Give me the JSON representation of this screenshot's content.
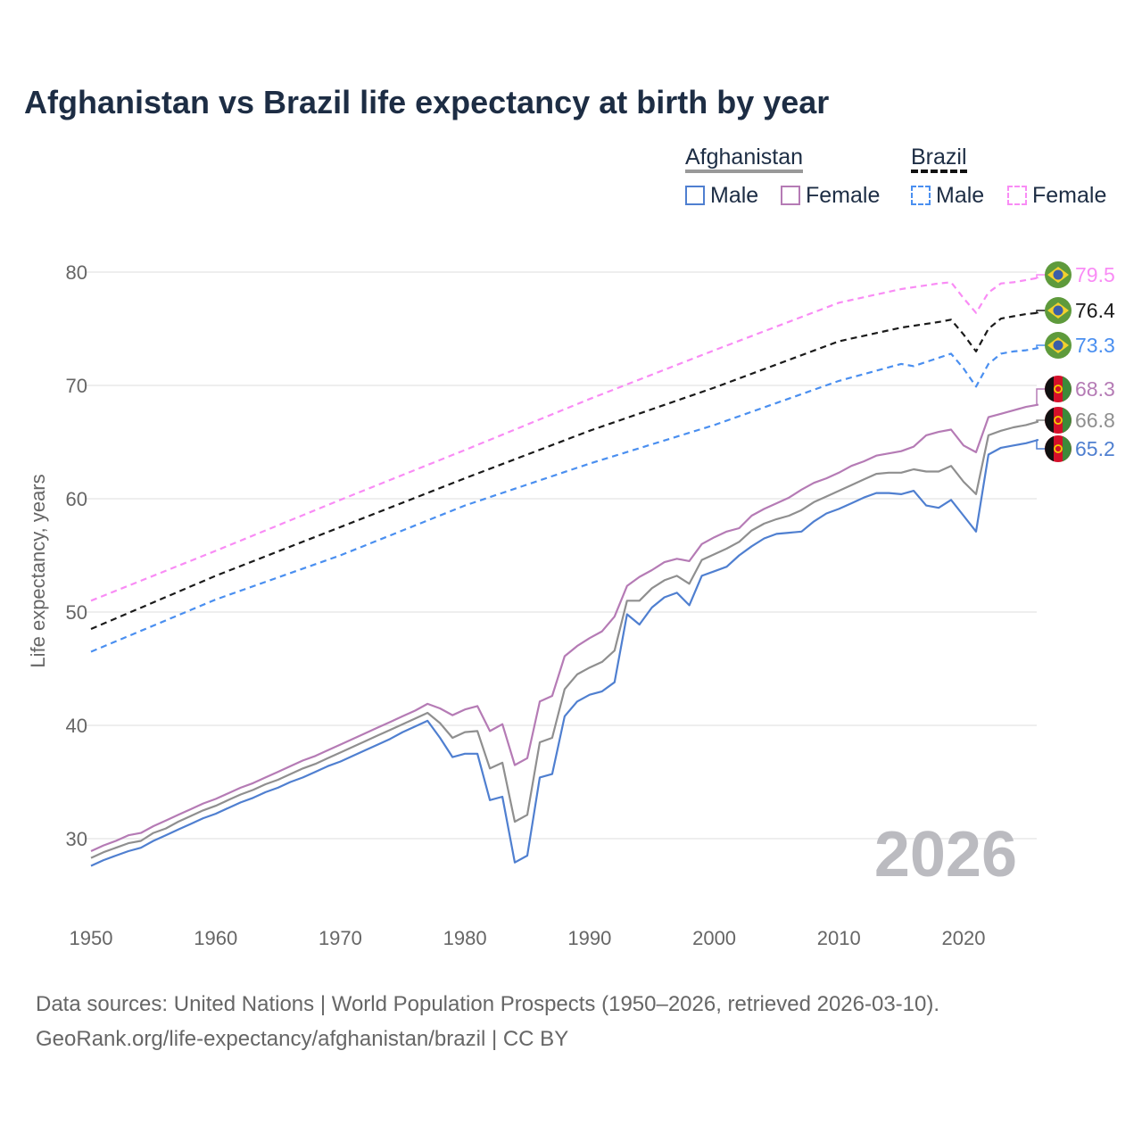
{
  "title": "Afghanistan vs Brazil life expectancy at birth by year",
  "legend": {
    "groups": [
      {
        "name": "Afghanistan",
        "items": [
          "Male",
          "Female"
        ]
      },
      {
        "name": "Brazil",
        "items": [
          "Male",
          "Female"
        ]
      }
    ]
  },
  "year_watermark": "2026",
  "source_line1": "Data sources: United Nations | World Population Prospects (1950–2026, retrieved 2026-03-10).",
  "source_line2": "GeoRank.org/life-expectancy/afghanistan/brazil | CC BY",
  "chart_data": {
    "type": "line",
    "title": "Afghanistan vs Brazil life expectancy at birth by year",
    "xlabel": "",
    "ylabel": "Life expectancy, years",
    "xlim": [
      1950,
      2026
    ],
    "ylim": [
      25,
      82
    ],
    "xticks": [
      1950,
      1960,
      1970,
      1980,
      1990,
      2000,
      2010,
      2020
    ],
    "yticks": [
      30,
      40,
      50,
      60,
      70,
      80
    ],
    "grid": true,
    "legend_position": "top-right",
    "series": [
      {
        "name": "Brazil Female",
        "country": "Brazil",
        "color": "#f98cf5",
        "dashed": true,
        "end_label": "79.5",
        "x": [
          1950,
          1960,
          1970,
          1980,
          1990,
          2000,
          2010,
          2015,
          2018,
          2019,
          2020,
          2021,
          2022,
          2023,
          2024,
          2025,
          2026
        ],
        "y": [
          51.0,
          55.4,
          59.9,
          64.3,
          68.8,
          73.1,
          77.3,
          78.5,
          79.0,
          79.1,
          77.7,
          76.4,
          78.2,
          79.0,
          79.1,
          79.3,
          79.5
        ]
      },
      {
        "name": "Brazil Both",
        "country": "Brazil",
        "color": "#1a1a1a",
        "dashed": true,
        "end_label": "76.4",
        "x": [
          1950,
          1960,
          1970,
          1980,
          1990,
          2000,
          2010,
          2015,
          2018,
          2019,
          2020,
          2021,
          2022,
          2023,
          2024,
          2025,
          2026
        ],
        "y": [
          48.5,
          53.2,
          57.5,
          61.8,
          66.0,
          69.8,
          73.9,
          75.1,
          75.6,
          75.8,
          74.5,
          73.0,
          75.0,
          75.9,
          76.1,
          76.3,
          76.4
        ]
      },
      {
        "name": "Brazil Male",
        "country": "Brazil",
        "color": "#4a8ff0",
        "dashed": true,
        "end_label": "73.3",
        "x": [
          1950,
          1960,
          1970,
          1980,
          1990,
          2000,
          2010,
          2015,
          2016,
          2019,
          2020,
          2021,
          2022,
          2023,
          2024,
          2025,
          2026
        ],
        "y": [
          46.5,
          51.1,
          55.0,
          59.4,
          63.1,
          66.5,
          70.4,
          71.9,
          71.7,
          72.8,
          71.5,
          69.9,
          71.9,
          72.8,
          73.0,
          73.1,
          73.3
        ]
      },
      {
        "name": "Afghanistan Female",
        "country": "Afghanistan",
        "color": "#b57bb5",
        "dashed": false,
        "end_label": "68.3",
        "x_start": 1950,
        "y": [
          28.9,
          29.4,
          29.8,
          30.3,
          30.5,
          31.1,
          31.6,
          32.1,
          32.6,
          33.1,
          33.5,
          34.0,
          34.5,
          34.9,
          35.4,
          35.9,
          36.4,
          36.9,
          37.3,
          37.8,
          38.3,
          38.8,
          39.3,
          39.8,
          40.3,
          40.8,
          41.3,
          41.9,
          41.5,
          40.9,
          41.4,
          41.7,
          39.5,
          40.1,
          36.5,
          37.1,
          42.1,
          42.6,
          46.1,
          47.0,
          47.7,
          48.3,
          49.6,
          52.3,
          53.1,
          53.7,
          54.4,
          54.7,
          54.5,
          56.0,
          56.6,
          57.1,
          57.4,
          58.5,
          59.1,
          59.6,
          60.1,
          60.8,
          61.4,
          61.8,
          62.3,
          62.9,
          63.3,
          63.8,
          64.0,
          64.2,
          64.6,
          65.6,
          65.9,
          66.1,
          64.7,
          64.1,
          67.2,
          67.5,
          67.8,
          68.1,
          68.3
        ]
      },
      {
        "name": "Afghanistan Both",
        "country": "Afghanistan",
        "color": "#8f8f8f",
        "dashed": false,
        "end_label": "66.8",
        "x_start": 1950,
        "y": [
          28.3,
          28.8,
          29.2,
          29.6,
          29.8,
          30.5,
          30.9,
          31.5,
          32.0,
          32.5,
          32.9,
          33.4,
          33.9,
          34.3,
          34.8,
          35.2,
          35.7,
          36.2,
          36.6,
          37.1,
          37.6,
          38.1,
          38.6,
          39.1,
          39.6,
          40.1,
          40.6,
          41.1,
          40.2,
          38.9,
          39.4,
          39.5,
          36.2,
          36.7,
          31.5,
          32.1,
          38.5,
          38.9,
          43.2,
          44.5,
          45.1,
          45.6,
          46.6,
          51.0,
          51.0,
          52.1,
          52.8,
          53.2,
          52.5,
          54.6,
          55.1,
          55.6,
          56.2,
          57.2,
          57.8,
          58.2,
          58.5,
          59.0,
          59.7,
          60.2,
          60.7,
          61.2,
          61.7,
          62.2,
          62.3,
          62.3,
          62.6,
          62.4,
          62.4,
          62.9,
          61.5,
          60.4,
          65.6,
          66.0,
          66.3,
          66.5,
          66.8
        ]
      },
      {
        "name": "Afghanistan Male",
        "country": "Afghanistan",
        "color": "#4f7fd0",
        "dashed": false,
        "end_label": "65.2",
        "x_start": 1950,
        "y": [
          27.6,
          28.1,
          28.5,
          28.9,
          29.2,
          29.8,
          30.3,
          30.8,
          31.3,
          31.8,
          32.2,
          32.7,
          33.2,
          33.6,
          34.1,
          34.5,
          35.0,
          35.4,
          35.9,
          36.4,
          36.8,
          37.3,
          37.8,
          38.3,
          38.8,
          39.4,
          39.9,
          40.4,
          38.9,
          37.2,
          37.5,
          37.5,
          33.4,
          33.7,
          27.9,
          28.5,
          35.4,
          35.7,
          40.8,
          42.1,
          42.7,
          43.0,
          43.8,
          49.8,
          48.9,
          50.4,
          51.3,
          51.7,
          50.6,
          53.2,
          53.6,
          54.0,
          55.0,
          55.8,
          56.5,
          56.9,
          57.0,
          57.1,
          58.0,
          58.7,
          59.1,
          59.6,
          60.1,
          60.5,
          60.5,
          60.4,
          60.7,
          59.4,
          59.2,
          59.9,
          58.5,
          57.1,
          63.9,
          64.5,
          64.7,
          64.9,
          65.2
        ]
      }
    ]
  }
}
